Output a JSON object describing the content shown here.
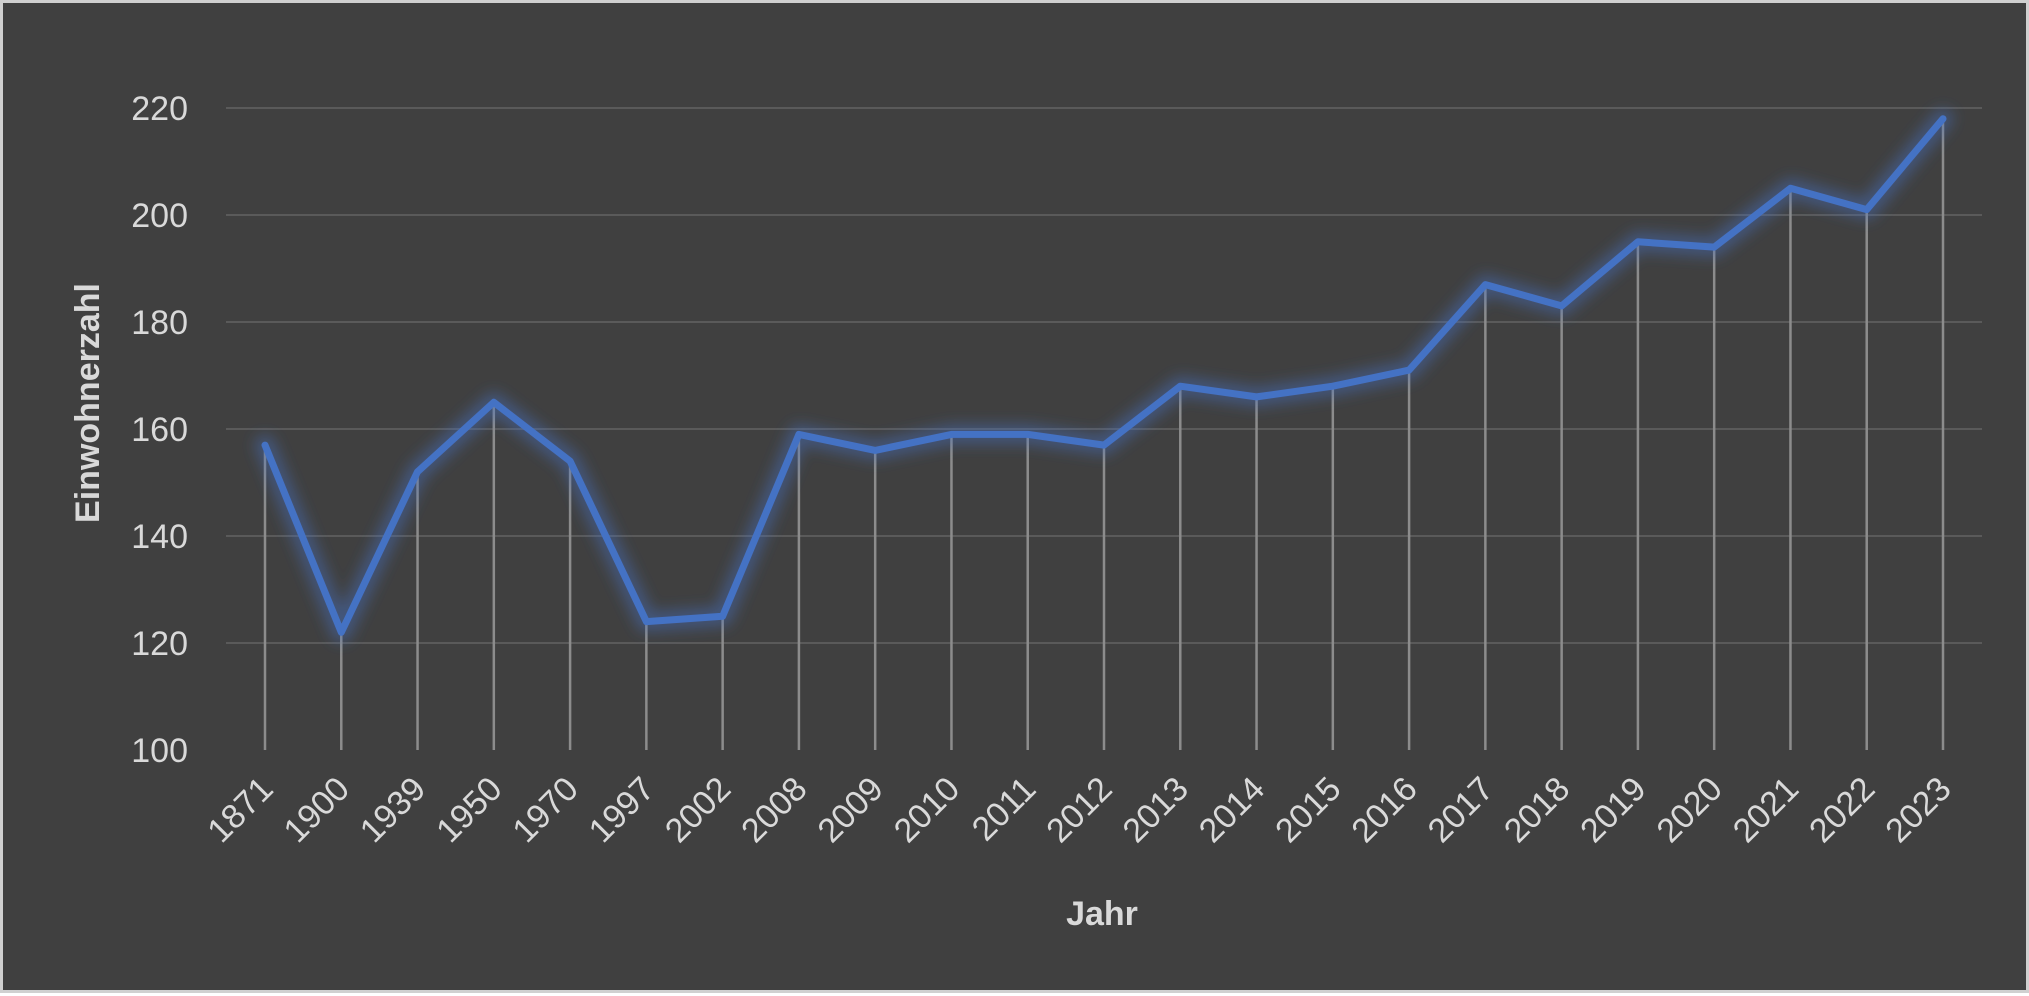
{
  "chart_data": {
    "type": "line",
    "title": "",
    "xlabel": "Jahr",
    "ylabel": "Einwohnerzahl",
    "categories": [
      "1871",
      "1900",
      "1939",
      "1950",
      "1970",
      "1997",
      "2002",
      "2008",
      "2009",
      "2010",
      "2011",
      "2012",
      "2013",
      "2014",
      "2015",
      "2016",
      "2017",
      "2018",
      "2019",
      "2020",
      "2021",
      "2022",
      "2023"
    ],
    "series": [
      {
        "values": [
          157,
          122,
          152,
          165,
          154,
          124,
          125,
          159,
          156,
          159,
          159,
          157,
          168,
          166,
          168,
          171,
          187,
          183,
          195,
          194,
          205,
          201,
          218
        ]
      }
    ],
    "ylim": [
      100,
      220
    ],
    "yticks": [
      "100",
      "120",
      "140",
      "160",
      "180",
      "200",
      "220"
    ],
    "grid": true,
    "drop_lines": true,
    "legend": "none",
    "colors": {
      "background": "#404040",
      "line": "#4472c4",
      "grid": "#5a5a5a",
      "drop_line": "#8c8c8c",
      "text": "#d9d9d9"
    }
  }
}
